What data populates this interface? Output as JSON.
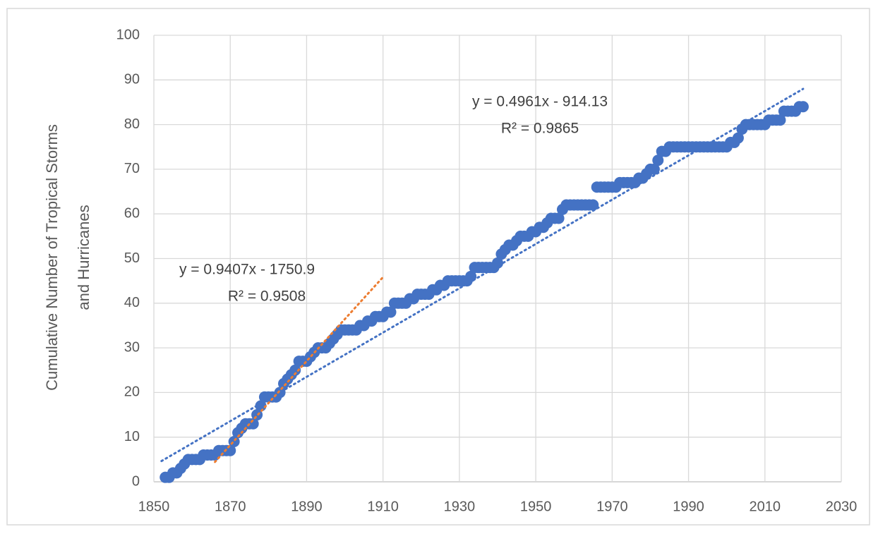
{
  "chart_data": {
    "type": "scatter",
    "ylabel": [
      "Cumulative Number of Tropical Storms",
      "and Hurricanes"
    ],
    "x": [
      1853,
      1854,
      1855,
      1856,
      1857,
      1858,
      1859,
      1860,
      1861,
      1862,
      1863,
      1864,
      1865,
      1866,
      1867,
      1868,
      1869,
      1870,
      1871,
      1872,
      1873,
      1874,
      1875,
      1876,
      1877,
      1878,
      1879,
      1880,
      1881,
      1882,
      1883,
      1884,
      1885,
      1886,
      1887,
      1888,
      1889,
      1890,
      1891,
      1892,
      1893,
      1894,
      1895,
      1896,
      1897,
      1898,
      1899,
      1900,
      1901,
      1902,
      1903,
      1904,
      1905,
      1906,
      1907,
      1908,
      1909,
      1910,
      1911,
      1912,
      1913,
      1914,
      1915,
      1916,
      1917,
      1918,
      1919,
      1920,
      1921,
      1922,
      1923,
      1924,
      1925,
      1926,
      1927,
      1928,
      1929,
      1930,
      1931,
      1932,
      1933,
      1934,
      1935,
      1936,
      1937,
      1938,
      1939,
      1940,
      1941,
      1942,
      1943,
      1944,
      1945,
      1946,
      1947,
      1948,
      1949,
      1950,
      1951,
      1952,
      1953,
      1954,
      1955,
      1956,
      1957,
      1958,
      1959,
      1960,
      1961,
      1962,
      1963,
      1964,
      1965,
      1966,
      1967,
      1968,
      1969,
      1970,
      1971,
      1972,
      1973,
      1974,
      1975,
      1976,
      1977,
      1978,
      1979,
      1980,
      1981,
      1982,
      1983,
      1984,
      1985,
      1986,
      1987,
      1988,
      1989,
      1990,
      1991,
      1992,
      1993,
      1994,
      1995,
      1996,
      1997,
      1998,
      1999,
      2000,
      2001,
      2002,
      2003,
      2004,
      2005,
      2006,
      2007,
      2008,
      2009,
      2010,
      2011,
      2012,
      2013,
      2014,
      2015,
      2016,
      2017,
      2018,
      2019,
      2020
    ],
    "values": [
      1,
      1,
      2,
      2,
      3,
      4,
      5,
      5,
      5,
      5,
      6,
      6,
      6,
      6,
      7,
      7,
      7,
      7,
      9,
      11,
      12,
      13,
      13,
      13,
      15,
      17,
      19,
      19,
      19,
      19,
      20,
      22,
      23,
      24,
      25,
      27,
      27,
      27,
      28,
      29,
      30,
      30,
      30,
      31,
      32,
      33,
      34,
      34,
      34,
      34,
      34,
      35,
      35,
      36,
      36,
      37,
      37,
      37,
      38,
      38,
      40,
      40,
      40,
      40,
      41,
      41,
      42,
      42,
      42,
      42,
      43,
      43,
      44,
      44,
      45,
      45,
      45,
      45,
      45,
      45,
      46,
      48,
      48,
      48,
      48,
      48,
      48,
      49,
      51,
      52,
      53,
      53,
      54,
      55,
      55,
      55,
      56,
      56,
      57,
      57,
      58,
      59,
      59,
      59,
      61,
      62,
      62,
      62,
      62,
      62,
      62,
      62,
      62,
      66,
      66,
      66,
      66,
      66,
      66,
      67,
      67,
      67,
      67,
      67,
      68,
      68,
      69,
      70,
      70,
      72,
      74,
      74,
      75,
      75,
      75,
      75,
      75,
      75,
      75,
      75,
      75,
      75,
      75,
      75,
      75,
      75,
      75,
      75,
      76,
      76,
      77,
      79,
      80,
      80,
      80,
      80,
      80,
      80,
      81,
      81,
      81,
      81,
      83,
      83,
      83,
      83,
      84,
      84
    ],
    "color": "#4472c4",
    "xlim": [
      1850,
      2030
    ],
    "xticks": [
      1850,
      1870,
      1890,
      1910,
      1930,
      1950,
      1970,
      1990,
      2010,
      2030
    ],
    "ylim": [
      0,
      100
    ],
    "yticks": [
      0,
      10,
      20,
      30,
      40,
      50,
      60,
      70,
      80,
      90,
      100
    ],
    "grid": true,
    "trendlines": [
      {
        "label": "y = 0.4961x - 914.13",
        "r2_label": "R² = 0.9865",
        "slope": 0.4961,
        "intercept": -914.13,
        "x_range": [
          1852,
          2020
        ],
        "color": "#4472c4"
      },
      {
        "label": "y = 0.9407x - 1750.9",
        "r2_label": "R² = 0.9508",
        "slope": 0.9407,
        "intercept": -1750.9,
        "x_range": [
          1866,
          1910
        ],
        "color": "#ed7d31"
      }
    ]
  }
}
